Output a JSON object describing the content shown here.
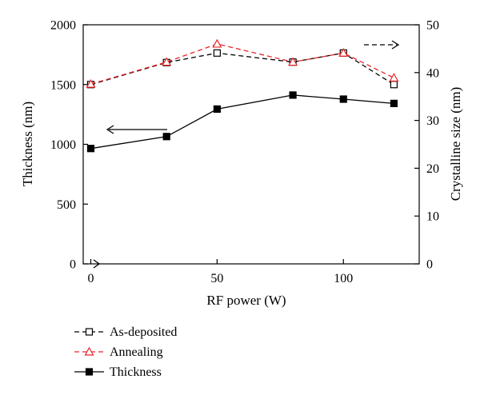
{
  "chart_data": {
    "type": "line",
    "xlabel": "RF power (W)",
    "ylabel_left": "Thickness (nm)",
    "ylabel_right": "Crystalline size (nm)",
    "xlim": [
      -3,
      130
    ],
    "ylim_left": [
      0,
      2000
    ],
    "ylim_right": [
      0,
      50
    ],
    "x_ticks": [
      0,
      50,
      100
    ],
    "y_left_ticks": [
      0,
      500,
      1000,
      1500,
      2000
    ],
    "y_right_ticks": [
      0,
      10,
      20,
      30,
      40,
      50
    ],
    "grid": false,
    "legend_position": "below",
    "series": [
      {
        "name": "As-deposited",
        "axis": "right",
        "line_style": "dashed",
        "marker": "open-square",
        "color": "#000000",
        "x": [
          0,
          30,
          50,
          80,
          100,
          120
        ],
        "values": [
          37.5,
          42.1,
          44.1,
          42.2,
          44.1,
          37.5
        ]
      },
      {
        "name": "Annealing",
        "axis": "right",
        "line_style": "dashed",
        "marker": "open-triangle",
        "color": "#e8262a",
        "x": [
          0,
          30,
          50,
          80,
          100,
          120
        ],
        "values": [
          37.6,
          42.2,
          46.0,
          42.2,
          44.1,
          38.9
        ]
      },
      {
        "name": "Thickness",
        "axis": "left",
        "line_style": "solid",
        "marker": "filled-square",
        "color": "#000000",
        "x": [
          0,
          30,
          50,
          80,
          100,
          120
        ],
        "values": [
          965,
          1065,
          1295,
          1412,
          1378,
          1342
        ]
      }
    ]
  }
}
